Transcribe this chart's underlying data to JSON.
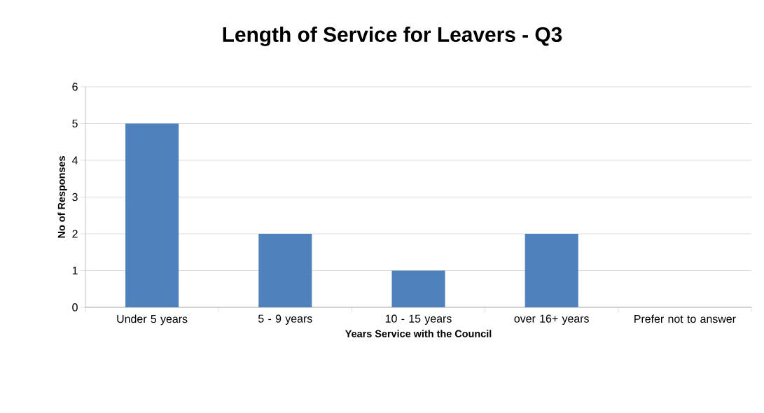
{
  "chart_data": {
    "type": "bar",
    "title": "Length of Service for Leavers - Q3",
    "xlabel": "Years Service with the Council",
    "ylabel": "No of Responses",
    "categories": [
      "Under 5 years",
      "5 - 9 years",
      "10 - 15 years",
      "over 16+ years",
      "Prefer not to answer"
    ],
    "values": [
      5,
      2,
      1,
      2,
      0
    ],
    "color": "#4f81bd",
    "ylim": [
      0,
      6
    ],
    "yticks": [
      0,
      1,
      2,
      3,
      4,
      5,
      6
    ],
    "grid": "y"
  }
}
